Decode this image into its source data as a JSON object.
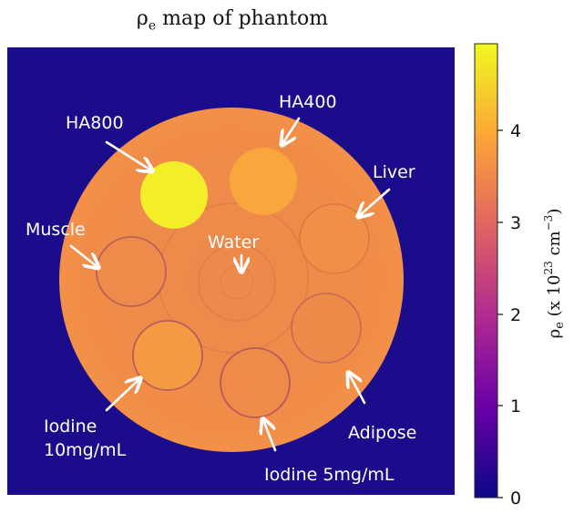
{
  "title": {
    "symbol": "ρ",
    "subscript": "e",
    "rest": " map of phantom"
  },
  "insert_labels": {
    "ha800": "HA800",
    "ha400": "HA400",
    "liver": "Liver",
    "muscle": "Muscle",
    "water": "Water",
    "iodine10_line1": "Iodine",
    "iodine10_line2": "10mg/mL",
    "iodine5": "Iodine 5mg/mL",
    "adipose": "Adipose"
  },
  "colorbar": {
    "ticks": [
      "0",
      "1",
      "2",
      "3",
      "4"
    ],
    "label_symbol": "ρ",
    "label_sub": "e",
    "label_rest": " (x 10",
    "label_exp": "23",
    "label_unit": " cm",
    "label_unit_exp": "−3",
    "label_close": ")",
    "range": [
      0,
      4.95
    ],
    "colors": [
      "#0d0887",
      "#6a00a8",
      "#b12a90",
      "#e16462",
      "#fca636",
      "#f0f921"
    ]
  },
  "colors": {
    "background": "#1a0c8a",
    "phantom": "#ef8a4a",
    "ha800": "#f4ee2a",
    "ha400": "#f9a73c"
  }
}
